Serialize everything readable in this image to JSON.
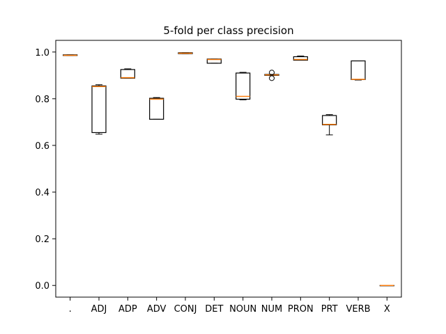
{
  "chart_data": {
    "type": "boxplot",
    "title": "5-fold per class precision",
    "xlabel": "",
    "ylabel": "",
    "ylim": [
      -0.05,
      1.05
    ],
    "yticks": [
      0.0,
      0.2,
      0.4,
      0.6,
      0.8,
      1.0
    ],
    "ytick_labels": [
      "0.0",
      "0.2",
      "0.4",
      "0.6",
      "0.8",
      "1.0"
    ],
    "categories": [
      ".",
      "ADJ",
      "ADP",
      "ADV",
      "CONJ",
      "DET",
      "NOUN",
      "NUM",
      "PRON",
      "PRT",
      "VERB",
      "X"
    ],
    "boxes": [
      {
        "whisker_low": 0.985,
        "q1": 0.985,
        "median": 0.986,
        "q3": 0.988,
        "whisker_high": 0.988,
        "outliers": []
      },
      {
        "whisker_low": 0.648,
        "q1": 0.655,
        "median": 0.852,
        "q3": 0.855,
        "whisker_high": 0.86,
        "outliers": []
      },
      {
        "whisker_low": 0.888,
        "q1": 0.888,
        "median": 0.89,
        "q3": 0.925,
        "whisker_high": 0.928,
        "outliers": []
      },
      {
        "whisker_low": 0.712,
        "q1": 0.712,
        "median": 0.798,
        "q3": 0.802,
        "whisker_high": 0.805,
        "outliers": []
      },
      {
        "whisker_low": 0.993,
        "q1": 0.993,
        "median": 0.995,
        "q3": 0.997,
        "whisker_high": 0.997,
        "outliers": []
      },
      {
        "whisker_low": 0.952,
        "q1": 0.952,
        "median": 0.968,
        "q3": 0.97,
        "whisker_high": 0.97,
        "outliers": []
      },
      {
        "whisker_low": 0.795,
        "q1": 0.798,
        "median": 0.81,
        "q3": 0.91,
        "whisker_high": 0.913,
        "outliers": []
      },
      {
        "whisker_low": 0.9,
        "q1": 0.9,
        "median": 0.902,
        "q3": 0.904,
        "whisker_high": 0.904,
        "outliers": [
          0.888,
          0.912
        ]
      },
      {
        "whisker_low": 0.965,
        "q1": 0.965,
        "median": 0.968,
        "q3": 0.98,
        "whisker_high": 0.983,
        "outliers": []
      },
      {
        "whisker_low": 0.645,
        "q1": 0.688,
        "median": 0.69,
        "q3": 0.728,
        "whisker_high": 0.732,
        "outliers": []
      },
      {
        "whisker_low": 0.88,
        "q1": 0.882,
        "median": 0.883,
        "q3": 0.962,
        "whisker_high": 0.962,
        "outliers": []
      },
      {
        "whisker_low": 0.0,
        "q1": 0.0,
        "median": 0.0,
        "q3": 0.0,
        "whisker_high": 0.0,
        "outliers": []
      }
    ],
    "grid": false,
    "legend": "none",
    "colors": {
      "box": "#000000",
      "median": "#ff7f0e",
      "background": "#ffffff"
    }
  }
}
